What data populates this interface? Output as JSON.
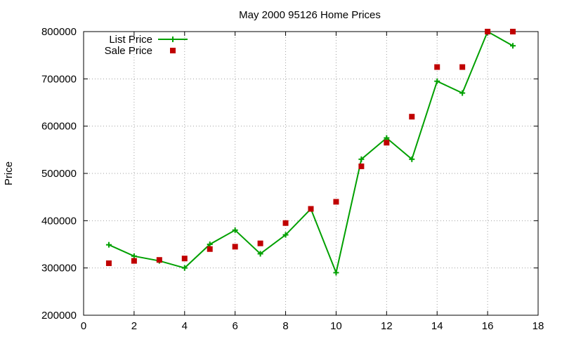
{
  "chart_data": {
    "type": "line",
    "title": "May 2000 95126 Home Prices",
    "xlabel": "",
    "ylabel": "Price",
    "xlim": [
      0,
      18
    ],
    "ylim": [
      200000,
      800000
    ],
    "xticks": [
      0,
      2,
      4,
      6,
      8,
      10,
      12,
      14,
      16,
      18
    ],
    "yticks": [
      200000,
      300000,
      400000,
      500000,
      600000,
      700000,
      800000
    ],
    "grid": true,
    "legend_position": "top-left",
    "series": [
      {
        "name": "List Price",
        "style": "lines+points",
        "marker": "plus",
        "color": "#00a000",
        "x": [
          1,
          2,
          3,
          4,
          5,
          6,
          7,
          8,
          9,
          10,
          11,
          12,
          13,
          14,
          15,
          16,
          17
        ],
        "y": [
          349000,
          325000,
          315000,
          300000,
          350000,
          380000,
          330000,
          370000,
          425000,
          290000,
          530000,
          575000,
          530000,
          695000,
          670000,
          800000,
          770000
        ]
      },
      {
        "name": "Sale Price",
        "style": "points",
        "marker": "square",
        "color": "#c00000",
        "x": [
          1,
          2,
          3,
          4,
          5,
          6,
          7,
          8,
          9,
          10,
          11,
          12,
          13,
          14,
          15,
          16,
          17
        ],
        "y": [
          310000,
          315000,
          317000,
          320000,
          340000,
          345000,
          352000,
          395000,
          425000,
          440000,
          515000,
          565000,
          620000,
          725000,
          725000,
          800000,
          800000
        ]
      }
    ]
  }
}
